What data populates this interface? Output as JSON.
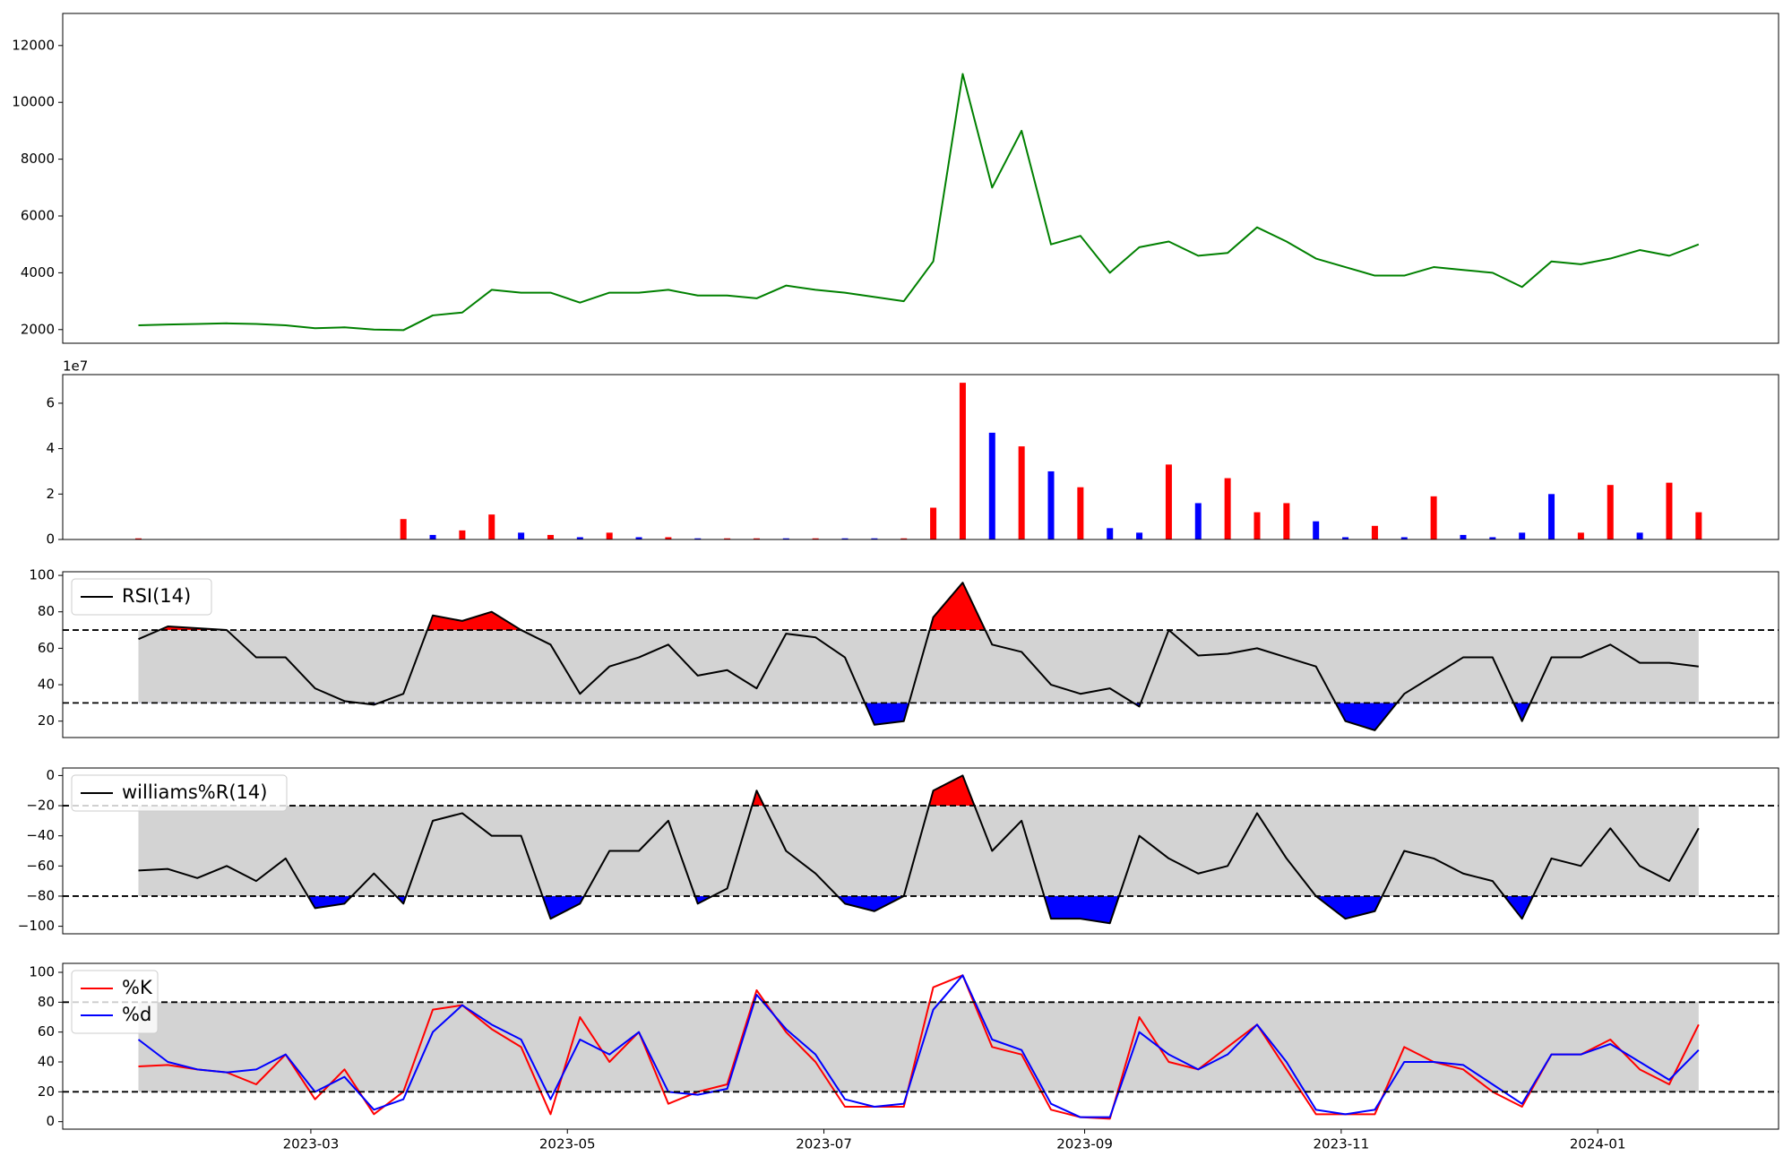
{
  "chart_data": [
    {
      "type": "line",
      "x": [
        "2023-01-19",
        "2023-01-26",
        "2023-02-02",
        "2023-02-09",
        "2023-02-16",
        "2023-02-23",
        "2023-03-02",
        "2023-03-09",
        "2023-03-16",
        "2023-03-23",
        "2023-03-30",
        "2023-04-06",
        "2023-04-13",
        "2023-04-20",
        "2023-04-27",
        "2023-05-04",
        "2023-05-11",
        "2023-05-18",
        "2023-05-25",
        "2023-06-01",
        "2023-06-08",
        "2023-06-15",
        "2023-06-22",
        "2023-06-29",
        "2023-07-06",
        "2023-07-13",
        "2023-07-20",
        "2023-07-27",
        "2023-08-03",
        "2023-08-10",
        "2023-08-17",
        "2023-08-24",
        "2023-08-31",
        "2023-09-07",
        "2023-09-14",
        "2023-09-21",
        "2023-09-28",
        "2023-10-05",
        "2023-10-12",
        "2023-10-19",
        "2023-10-26",
        "2023-11-02",
        "2023-11-09",
        "2023-11-16",
        "2023-11-23",
        "2023-11-30",
        "2023-12-07",
        "2023-12-14",
        "2023-12-21",
        "2023-12-28",
        "2024-01-04",
        "2024-01-11",
        "2024-01-18",
        "2024-01-25"
      ],
      "values": [
        2150,
        2180,
        2200,
        2220,
        2200,
        2150,
        2050,
        2080,
        2000,
        1980,
        2500,
        2600,
        3400,
        3300,
        3300,
        2950,
        3300,
        3300,
        3400,
        3200,
        3200,
        3100,
        3550,
        3400,
        3300,
        3150,
        3000,
        4400,
        11000,
        7000,
        9000,
        5000,
        5300,
        4000,
        4900,
        5100,
        4600,
        4700,
        5600,
        5100,
        4500,
        4200,
        3900,
        3900,
        4200,
        4100,
        4000,
        3500,
        4400,
        4300,
        4500,
        4800,
        4600,
        5000
      ],
      "color": "#008000",
      "xlim": [
        "2023-01-01",
        "2024-02-13"
      ],
      "ylim": [
        1520,
        13130
      ],
      "yticks": [
        2000,
        4000,
        6000,
        8000,
        10000,
        12000
      ]
    },
    {
      "type": "bar",
      "x": [
        "2023-01-19",
        "2023-01-26",
        "2023-02-02",
        "2023-02-09",
        "2023-02-16",
        "2023-02-23",
        "2023-03-02",
        "2023-03-09",
        "2023-03-16",
        "2023-03-23",
        "2023-03-30",
        "2023-04-06",
        "2023-04-13",
        "2023-04-20",
        "2023-04-27",
        "2023-05-04",
        "2023-05-11",
        "2023-05-18",
        "2023-05-25",
        "2023-06-01",
        "2023-06-08",
        "2023-06-15",
        "2023-06-22",
        "2023-06-29",
        "2023-07-06",
        "2023-07-13",
        "2023-07-20",
        "2023-07-27",
        "2023-08-03",
        "2023-08-10",
        "2023-08-17",
        "2023-08-24",
        "2023-08-31",
        "2023-09-07",
        "2023-09-14",
        "2023-09-21",
        "2023-09-28",
        "2023-10-05",
        "2023-10-12",
        "2023-10-19",
        "2023-10-26",
        "2023-11-02",
        "2023-11-09",
        "2023-11-16",
        "2023-11-23",
        "2023-11-30",
        "2023-12-07",
        "2023-12-14",
        "2023-12-21",
        "2023-12-28",
        "2024-01-04",
        "2024-01-11",
        "2024-01-18",
        "2024-01-25"
      ],
      "values": [
        0.05,
        0.02,
        0.02,
        0.02,
        0.02,
        0.02,
        0.02,
        0.02,
        0.02,
        0.9,
        0.2,
        0.4,
        1.1,
        0.3,
        0.2,
        0.1,
        0.3,
        0.1,
        0.1,
        0.05,
        0.05,
        0.05,
        0.05,
        0.05,
        0.05,
        0.05,
        0.05,
        1.4,
        6.9,
        4.7,
        4.1,
        3.0,
        2.3,
        0.5,
        0.3,
        3.3,
        1.6,
        2.7,
        1.2,
        1.6,
        0.8,
        0.1,
        0.6,
        0.1,
        1.9,
        0.2,
        0.1,
        0.3,
        2.0,
        0.3,
        2.4,
        0.3,
        2.5,
        1.2
      ],
      "colors": [
        "red",
        "blue",
        "red",
        "blue",
        "red",
        "blue",
        "red",
        "blue",
        "red",
        "red",
        "blue",
        "red",
        "red",
        "blue",
        "red",
        "blue",
        "red",
        "blue",
        "red",
        "blue",
        "red",
        "red",
        "blue",
        "red",
        "blue",
        "blue",
        "red",
        "red",
        "red",
        "blue",
        "red",
        "blue",
        "red",
        "blue",
        "blue",
        "red",
        "blue",
        "red",
        "red",
        "red",
        "blue",
        "blue",
        "red",
        "blue",
        "red",
        "blue",
        "blue",
        "blue",
        "blue",
        "red",
        "red",
        "blue",
        "red",
        "red"
      ],
      "offset_label": "1e7",
      "xlim": [
        "2023-01-01",
        "2024-02-13"
      ],
      "ylim": [
        0,
        7.26
      ],
      "yticks": [
        0,
        2,
        4,
        6
      ]
    },
    {
      "type": "line",
      "x": [
        "2023-01-19",
        "2023-01-26",
        "2023-02-02",
        "2023-02-09",
        "2023-02-16",
        "2023-02-23",
        "2023-03-02",
        "2023-03-09",
        "2023-03-16",
        "2023-03-23",
        "2023-03-30",
        "2023-04-06",
        "2023-04-13",
        "2023-04-20",
        "2023-04-27",
        "2023-05-04",
        "2023-05-11",
        "2023-05-18",
        "2023-05-25",
        "2023-06-01",
        "2023-06-08",
        "2023-06-15",
        "2023-06-22",
        "2023-06-29",
        "2023-07-06",
        "2023-07-13",
        "2023-07-20",
        "2023-07-27",
        "2023-08-03",
        "2023-08-10",
        "2023-08-17",
        "2023-08-24",
        "2023-08-31",
        "2023-09-07",
        "2023-09-14",
        "2023-09-21",
        "2023-09-28",
        "2023-10-05",
        "2023-10-12",
        "2023-10-19",
        "2023-10-26",
        "2023-11-02",
        "2023-11-09",
        "2023-11-16",
        "2023-11-23",
        "2023-11-30",
        "2023-12-07",
        "2023-12-14",
        "2023-12-21",
        "2023-12-28",
        "2024-01-04",
        "2024-01-11",
        "2024-01-18",
        "2024-01-25"
      ],
      "series": [
        {
          "name": "RSI(14)",
          "color": "#000000",
          "values": [
            65,
            72,
            71,
            70,
            55,
            55,
            38,
            31,
            29,
            35,
            78,
            75,
            80,
            70,
            62,
            35,
            50,
            55,
            62,
            45,
            48,
            38,
            68,
            66,
            55,
            18,
            20,
            77,
            96,
            62,
            58,
            40,
            35,
            38,
            28,
            70,
            56,
            57,
            60,
            55,
            50,
            20,
            15,
            35,
            45,
            55,
            55,
            20,
            55,
            55,
            62,
            52,
            52,
            50
          ]
        }
      ],
      "thresholds": {
        "upper": 70,
        "lower": 30
      },
      "band_color": "#d3d3d3",
      "fill_above": "red",
      "fill_below": "blue",
      "legend": "upper left",
      "xlim": [
        "2023-01-01",
        "2024-02-13"
      ],
      "ylim": [
        11,
        102
      ],
      "yticks": [
        20,
        40,
        60,
        80,
        100
      ]
    },
    {
      "type": "line",
      "x": [
        "2023-01-19",
        "2023-01-26",
        "2023-02-02",
        "2023-02-09",
        "2023-02-16",
        "2023-02-23",
        "2023-03-02",
        "2023-03-09",
        "2023-03-16",
        "2023-03-23",
        "2023-03-30",
        "2023-04-06",
        "2023-04-13",
        "2023-04-20",
        "2023-04-27",
        "2023-05-04",
        "2023-05-11",
        "2023-05-18",
        "2023-05-25",
        "2023-06-01",
        "2023-06-08",
        "2023-06-15",
        "2023-06-22",
        "2023-06-29",
        "2023-07-06",
        "2023-07-13",
        "2023-07-20",
        "2023-07-27",
        "2023-08-03",
        "2023-08-10",
        "2023-08-17",
        "2023-08-24",
        "2023-08-31",
        "2023-09-07",
        "2023-09-14",
        "2023-09-21",
        "2023-09-28",
        "2023-10-05",
        "2023-10-12",
        "2023-10-19",
        "2023-10-26",
        "2023-11-02",
        "2023-11-09",
        "2023-11-16",
        "2023-11-23",
        "2023-11-30",
        "2023-12-07",
        "2023-12-14",
        "2023-12-21",
        "2023-12-28",
        "2024-01-04",
        "2024-01-11",
        "2024-01-18",
        "2024-01-25"
      ],
      "series": [
        {
          "name": "williams%R(14)",
          "color": "#000000",
          "values": [
            -63,
            -62,
            -68,
            -60,
            -70,
            -55,
            -88,
            -85,
            -65,
            -85,
            -30,
            -25,
            -40,
            -40,
            -95,
            -85,
            -50,
            -50,
            -30,
            -85,
            -75,
            -10,
            -50,
            -65,
            -85,
            -90,
            -80,
            -10,
            0,
            -50,
            -30,
            -95,
            -95,
            -98,
            -40,
            -55,
            -65,
            -60,
            -25,
            -55,
            -80,
            -95,
            -90,
            -50,
            -55,
            -65,
            -70,
            -95,
            -55,
            -60,
            -35,
            -60,
            -70,
            -35
          ]
        }
      ],
      "thresholds": {
        "upper": -20,
        "lower": -80
      },
      "band_color": "#d3d3d3",
      "fill_above": "red",
      "fill_below": "blue",
      "legend": "upper left",
      "xlim": [
        "2023-01-01",
        "2024-02-13"
      ],
      "ylim": [
        -105,
        5
      ],
      "yticks": [
        {
          "value": -100,
          "label": "−100"
        },
        {
          "value": -80,
          "label": "−80"
        },
        {
          "value": -60,
          "label": "−60"
        },
        {
          "value": -40,
          "label": "−40"
        },
        {
          "value": -20,
          "label": "−20"
        },
        0
      ]
    },
    {
      "type": "line",
      "x": [
        "2023-01-19",
        "2023-01-26",
        "2023-02-02",
        "2023-02-09",
        "2023-02-16",
        "2023-02-23",
        "2023-03-02",
        "2023-03-09",
        "2023-03-16",
        "2023-03-23",
        "2023-03-30",
        "2023-04-06",
        "2023-04-13",
        "2023-04-20",
        "2023-04-27",
        "2023-05-04",
        "2023-05-11",
        "2023-05-18",
        "2023-05-25",
        "2023-06-01",
        "2023-06-08",
        "2023-06-15",
        "2023-06-22",
        "2023-06-29",
        "2023-07-06",
        "2023-07-13",
        "2023-07-20",
        "2023-07-27",
        "2023-08-03",
        "2023-08-10",
        "2023-08-17",
        "2023-08-24",
        "2023-08-31",
        "2023-09-07",
        "2023-09-14",
        "2023-09-21",
        "2023-09-28",
        "2023-10-05",
        "2023-10-12",
        "2023-10-19",
        "2023-10-26",
        "2023-11-02",
        "2023-11-09",
        "2023-11-16",
        "2023-11-23",
        "2023-11-30",
        "2023-12-07",
        "2023-12-14",
        "2023-12-21",
        "2023-12-28",
        "2024-01-04",
        "2024-01-11",
        "2024-01-18",
        "2024-01-25"
      ],
      "series": [
        {
          "name": "%K",
          "color": "#ff0000",
          "values": [
            37,
            38,
            35,
            33,
            25,
            45,
            15,
            35,
            5,
            20,
            75,
            78,
            62,
            50,
            5,
            70,
            40,
            60,
            12,
            20,
            25,
            88,
            60,
            40,
            10,
            10,
            10,
            90,
            98,
            50,
            45,
            8,
            3,
            2,
            70,
            40,
            35,
            50,
            65,
            35,
            5,
            5,
            5,
            50,
            40,
            35,
            20,
            10,
            45,
            45,
            55,
            35,
            25,
            65
          ]
        },
        {
          "name": "%d",
          "color": "#0000ff",
          "values": [
            55,
            40,
            35,
            33,
            35,
            45,
            20,
            30,
            8,
            15,
            60,
            78,
            65,
            55,
            15,
            55,
            45,
            60,
            20,
            18,
            22,
            85,
            62,
            45,
            15,
            10,
            12,
            75,
            98,
            55,
            48,
            12,
            3,
            3,
            60,
            45,
            35,
            45,
            65,
            40,
            8,
            5,
            8,
            40,
            40,
            38,
            25,
            12,
            45,
            45,
            52,
            40,
            28,
            48
          ]
        }
      ],
      "thresholds": {
        "upper": 80,
        "lower": 20
      },
      "band_color": "#d3d3d3",
      "legend": "upper left",
      "xlim": [
        "2023-01-01",
        "2024-02-13"
      ],
      "ylim": [
        -5,
        106
      ],
      "yticks": [
        0,
        20,
        40,
        60,
        80,
        100
      ],
      "xticks": [
        "2023-03",
        "2023-05",
        "2023-07",
        "2023-09",
        "2023-11",
        "2024-01"
      ]
    }
  ]
}
